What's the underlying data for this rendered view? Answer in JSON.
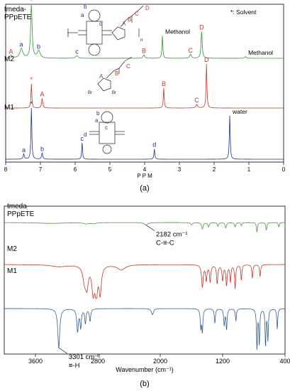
{
  "panel_a": {
    "caption": "(a)",
    "solvent_note": "*: Solvent",
    "xlabel": "P P M",
    "chart_data": {
      "type": "line",
      "xlim": [
        8,
        0
      ],
      "x_ticks": [
        "8",
        "7",
        "6",
        "5",
        "4",
        "3",
        "2",
        "1",
        "0"
      ],
      "series": [
        {
          "name": "tmeda-PPpETE",
          "color": "#2e9a2e",
          "peaks": [
            {
              "ppm": 7.26,
              "h": 1.0,
              "w": 0.025,
              "label": "*",
              "label_color": "#2e9a2e"
            },
            {
              "ppm": 7.55,
              "h": 0.18,
              "w": 0.05,
              "label": "a",
              "label_color": "#1f2f8f"
            },
            {
              "ppm": 7.05,
              "h": 0.14,
              "w": 0.05,
              "label": "b",
              "label_color": "#1f2f8f"
            },
            {
              "ppm": 7.85,
              "h": 0.05,
              "w": 0.05,
              "label": "A",
              "label_color": "#c0392b"
            },
            {
              "ppm": 5.95,
              "h": 0.05,
              "w": 0.04,
              "label": "c",
              "label_color": "#1f2f8f"
            },
            {
              "ppm": 4.02,
              "h": 0.06,
              "w": 0.03,
              "label": "B",
              "label_color": "#c0392b"
            },
            {
              "ppm": 3.49,
              "h": 0.42,
              "w": 0.015,
              "label": "Methanol",
              "label_color": "#000000"
            },
            {
              "ppm": 2.68,
              "h": 0.07,
              "w": 0.03,
              "label": "C",
              "label_color": "#c0392b"
            },
            {
              "ppm": 2.36,
              "h": 0.5,
              "w": 0.02,
              "label": "D",
              "label_color": "#c0392b"
            },
            {
              "ppm": 1.1,
              "h": 0.03,
              "w": 0.03,
              "label": "Methanol",
              "label_color": "#000000"
            }
          ]
        },
        {
          "name": "M2",
          "color": "#c0392b",
          "peaks": [
            {
              "ppm": 7.26,
              "h": 0.55,
              "w": 0.015,
              "label": "*",
              "label_color": "#c0392b"
            },
            {
              "ppm": 6.95,
              "h": 0.22,
              "w": 0.02,
              "label": "A",
              "label_color": "#c0392b"
            },
            {
              "ppm": 3.45,
              "h": 0.45,
              "w": 0.015,
              "label": "B",
              "label_color": "#c0392b"
            },
            {
              "ppm": 2.5,
              "h": 0.08,
              "w": 0.03,
              "label": "C",
              "label_color": "#c0392b"
            },
            {
              "ppm": 2.22,
              "h": 1.0,
              "w": 0.015,
              "label": "D",
              "label_color": "#c0392b"
            }
          ]
        },
        {
          "name": "M1",
          "color": "#1f2f8f",
          "peaks": [
            {
              "ppm": 7.26,
              "h": 1.0,
              "w": 0.015,
              "label": "*",
              "label_color": "#1f2f8f"
            },
            {
              "ppm": 7.48,
              "h": 0.1,
              "w": 0.02,
              "label": "a",
              "label_color": "#1f2f8f"
            },
            {
              "ppm": 6.95,
              "h": 0.12,
              "w": 0.02,
              "label": "b",
              "label_color": "#1f2f8f"
            },
            {
              "ppm": 5.8,
              "h": 0.32,
              "w": 0.015,
              "label": "c",
              "label_color": "#1f2f8f"
            },
            {
              "ppm": 3.72,
              "h": 0.2,
              "w": 0.015,
              "label": "d",
              "label_color": "#1f2f8f"
            },
            {
              "ppm": 1.55,
              "h": 0.85,
              "w": 0.015,
              "label": "water",
              "label_color": "#000000"
            }
          ]
        }
      ]
    },
    "structure_labels": {
      "polymer": [
        "b",
        "a",
        "c",
        "A",
        "B",
        "C",
        "D",
        "n"
      ],
      "m2": [
        "A",
        "B",
        "C",
        "Br",
        "Br"
      ],
      "m1": [
        "b",
        "a",
        "c",
        "d"
      ]
    }
  },
  "panel_b": {
    "caption": "(b)",
    "xlabel": "Wavenumber (cm⁻¹)",
    "chart_data": {
      "type": "line",
      "xlim": [
        4000,
        400
      ],
      "x_ticks": [
        "3600",
        "2800",
        "2000",
        "1200",
        "400"
      ],
      "series": [
        {
          "name": "tmeda-PPpETE",
          "color": "#4c9a3c",
          "bands": [
            {
              "wn": 3400,
              "d": 0.04,
              "w": 200
            },
            {
              "wn": 2950,
              "d": 0.06,
              "w": 40
            },
            {
              "wn": 2850,
              "d": 0.05,
              "w": 30
            },
            {
              "wn": 2182,
              "d": 0.12,
              "w": 25
            },
            {
              "wn": 1600,
              "d": 0.1,
              "w": 15
            },
            {
              "wn": 1460,
              "d": 0.3,
              "w": 12
            },
            {
              "wn": 1380,
              "d": 0.2,
              "w": 10
            },
            {
              "wn": 1260,
              "d": 0.18,
              "w": 10
            },
            {
              "wn": 1160,
              "d": 0.25,
              "w": 10
            },
            {
              "wn": 1040,
              "d": 0.2,
              "w": 10
            },
            {
              "wn": 960,
              "d": 0.15,
              "w": 8
            },
            {
              "wn": 760,
              "d": 0.45,
              "w": 8
            },
            {
              "wn": 640,
              "d": 0.35,
              "w": 8
            },
            {
              "wn": 480,
              "d": 0.2,
              "w": 8
            }
          ],
          "annotation": {
            "wn": 2182,
            "lines": [
              "2182 cm⁻¹",
              "C-≡-C"
            ]
          }
        },
        {
          "name": "M2",
          "color": "#c0392b",
          "bands": [
            {
              "wn": 3300,
              "d": 0.06,
              "w": 120
            },
            {
              "wn": 2970,
              "d": 0.45,
              "w": 25
            },
            {
              "wn": 2940,
              "d": 0.55,
              "w": 20
            },
            {
              "wn": 2860,
              "d": 0.75,
              "w": 20
            },
            {
              "wn": 2820,
              "d": 0.85,
              "w": 18
            },
            {
              "wn": 2770,
              "d": 0.8,
              "w": 18
            },
            {
              "wn": 2500,
              "d": 0.15,
              "w": 60
            },
            {
              "wn": 1460,
              "d": 0.65,
              "w": 12
            },
            {
              "wn": 1410,
              "d": 0.45,
              "w": 10
            },
            {
              "wn": 1360,
              "d": 0.5,
              "w": 10
            },
            {
              "wn": 1270,
              "d": 0.55,
              "w": 10
            },
            {
              "wn": 1200,
              "d": 0.45,
              "w": 10
            },
            {
              "wn": 1150,
              "d": 0.6,
              "w": 10
            },
            {
              "wn": 1100,
              "d": 0.5,
              "w": 8
            },
            {
              "wn": 1040,
              "d": 0.7,
              "w": 8
            },
            {
              "wn": 960,
              "d": 0.45,
              "w": 8
            },
            {
              "wn": 820,
              "d": 0.4,
              "w": 8
            },
            {
              "wn": 720,
              "d": 0.35,
              "w": 8
            }
          ]
        },
        {
          "name": "M1",
          "color": "#2f5f95",
          "bands": [
            {
              "wn": 3301,
              "d": 0.95,
              "w": 15
            },
            {
              "wn": 3060,
              "d": 0.55,
              "w": 12
            },
            {
              "wn": 3020,
              "d": 0.45,
              "w": 10
            },
            {
              "wn": 2960,
              "d": 0.35,
              "w": 10
            },
            {
              "wn": 2900,
              "d": 0.3,
              "w": 10
            },
            {
              "wn": 2100,
              "d": 0.15,
              "w": 15
            },
            {
              "wn": 1480,
              "d": 0.45,
              "w": 8
            },
            {
              "wn": 1460,
              "d": 0.55,
              "w": 8
            },
            {
              "wn": 1300,
              "d": 0.35,
              "w": 8
            },
            {
              "wn": 1180,
              "d": 0.4,
              "w": 8
            },
            {
              "wn": 1150,
              "d": 0.5,
              "w": 8
            },
            {
              "wn": 1030,
              "d": 0.3,
              "w": 8
            },
            {
              "wn": 760,
              "d": 1.0,
              "w": 7
            },
            {
              "wn": 730,
              "d": 0.85,
              "w": 7
            },
            {
              "wn": 650,
              "d": 0.9,
              "w": 7
            },
            {
              "wn": 620,
              "d": 0.75,
              "w": 7
            },
            {
              "wn": 500,
              "d": 0.5,
              "w": 7
            }
          ],
          "annotation": {
            "wn": 3301,
            "lines": [
              "3301 cm⁻¹",
              "≡-H"
            ]
          }
        }
      ]
    }
  }
}
